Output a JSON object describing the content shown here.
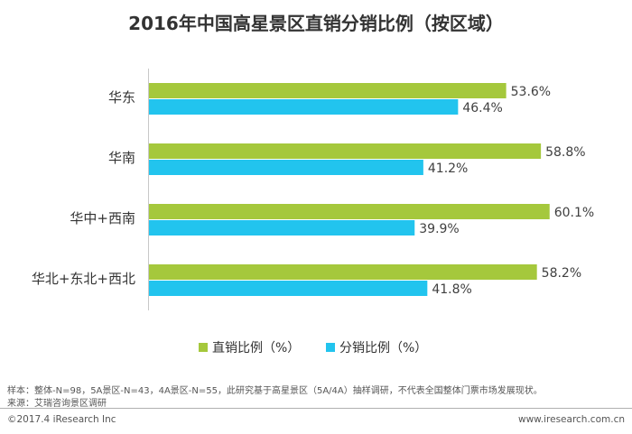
{
  "chart_data": {
    "type": "bar",
    "orientation": "horizontal",
    "title": "2016年中国高星景区直销分销比例（按区域）",
    "categories": [
      "华东",
      "华南",
      "华中+西南",
      "华北+东北+西北"
    ],
    "series": [
      {
        "name": "直销比例（%）",
        "values": [
          53.6,
          58.8,
          60.1,
          58.2
        ],
        "labels": [
          "53.6%",
          "58.8%",
          "60.1%",
          "58.2%"
        ],
        "color": "#a5c83c"
      },
      {
        "name": "分销比例（%）",
        "values": [
          46.4,
          41.2,
          39.9,
          41.8
        ],
        "labels": [
          "46.4%",
          "41.2%",
          "39.9%",
          "41.8%"
        ],
        "color": "#22c4ee"
      }
    ],
    "xlim": [
      0,
      100
    ],
    "grid": false,
    "legend": "bottom"
  },
  "notes": {
    "sample": "样本：整体-N=98，5A景区-N=43，4A景区-N=55，此研究基于高星景区（5A/4A）抽样调研，不代表全国整体门票市场发展现状。",
    "source": "来源：艾瑞咨询景区调研"
  },
  "footer": {
    "copyright": "©2017.4 iResearch Inc",
    "website": "www.iresearch.com.cn"
  }
}
